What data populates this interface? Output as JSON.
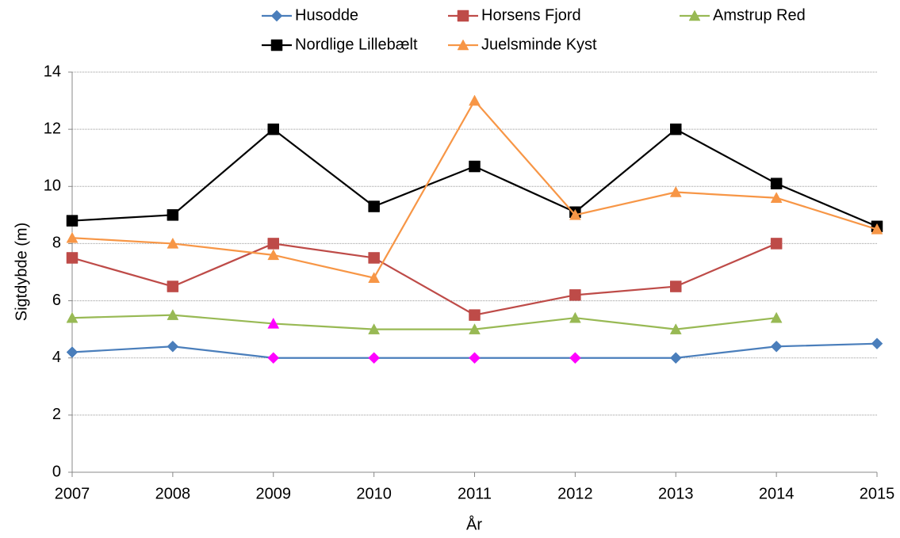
{
  "chart_data": {
    "type": "line",
    "x_label": "År",
    "y_label": "Sigtdybde (m)",
    "x": [
      2007,
      2008,
      2009,
      2010,
      2011,
      2012,
      2013,
      2014,
      2015
    ],
    "xlim": [
      2007,
      2015
    ],
    "xticks": [
      2007,
      2008,
      2009,
      2010,
      2011,
      2012,
      2013,
      2014,
      2015
    ],
    "ylim": [
      0,
      14
    ],
    "yticks": [
      0,
      2,
      4,
      6,
      8,
      10,
      12,
      14
    ],
    "grid": true,
    "legend": "top",
    "series": [
      {
        "name": "Husodde",
        "color": "#4a7ebb",
        "marker": "diamond",
        "values": [
          4.2,
          4.4,
          4.0,
          4.0,
          4.0,
          4.0,
          4.0,
          4.4,
          4.5
        ],
        "marker_colors": [
          "#4a7ebb",
          "#4a7ebb",
          "#ff00ff",
          "#ff00ff",
          "#ff00ff",
          "#ff00ff",
          "#4a7ebb",
          "#4a7ebb",
          "#4a7ebb"
        ]
      },
      {
        "name": "Horsens Fjord",
        "color": "#be4b48",
        "marker": "square",
        "values": [
          7.5,
          6.5,
          8.0,
          7.5,
          5.5,
          6.2,
          6.5,
          8.0,
          null
        ]
      },
      {
        "name": "Amstrup Red",
        "color": "#98b954",
        "marker": "triangle",
        "values": [
          5.4,
          5.5,
          5.2,
          5.0,
          5.0,
          5.4,
          5.0,
          5.4,
          null
        ],
        "marker_colors": [
          "#98b954",
          "#98b954",
          "#ff00ff",
          "#98b954",
          "#98b954",
          "#98b954",
          "#98b954",
          "#98b954",
          "#98b954"
        ]
      },
      {
        "name": "Nordlige Lillebælt",
        "color": "#000000",
        "marker": "square",
        "values": [
          8.8,
          9.0,
          12.0,
          9.3,
          10.7,
          9.1,
          12.0,
          10.1,
          8.6
        ]
      },
      {
        "name": "Juelsminde Kyst",
        "color": "#f79646",
        "marker": "triangle",
        "values": [
          8.2,
          8.0,
          7.6,
          6.8,
          13.0,
          9.0,
          9.8,
          9.6,
          8.5
        ]
      }
    ]
  }
}
